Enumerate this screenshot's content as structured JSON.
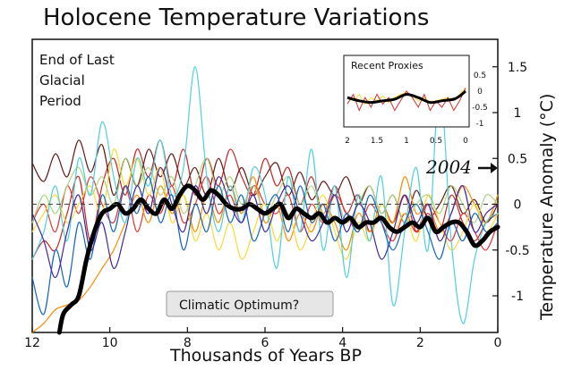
{
  "chart_data": {
    "type": "line",
    "title": "Holocene Temperature Variations",
    "xlabel": "Thousands of Years BP",
    "ylabel": "Temperature Anomaly (°C)",
    "xlim": [
      12,
      0
    ],
    "ylim": [
      -1.4,
      1.8
    ],
    "x_ticks": [
      12,
      10,
      8,
      6,
      4,
      2,
      0
    ],
    "y_ticks": [
      1.5,
      1,
      0.5,
      0,
      -0.5,
      -1
    ],
    "grid": false,
    "zero_line": "dashed",
    "annotations": {
      "glacial": [
        "End of Last",
        "Glacial",
        "Period"
      ],
      "optimum": "Climatic Optimum?",
      "marker_2004": "2004",
      "marker_2004_value": 0.39
    },
    "series": [
      {
        "color": "#c62828",
        "x": [
          12,
          11.7,
          11.4,
          11.1,
          10.8,
          10.5,
          10.2,
          9.9,
          9.6,
          9.3,
          9,
          8.7,
          8.4,
          8.1,
          7.8,
          7.5,
          7.2,
          6.9,
          6.6,
          6.3,
          6,
          5.7,
          5.4,
          5.1,
          4.8,
          4.5,
          4.2,
          3.9,
          3.6,
          3.3,
          3,
          2.7,
          2.4,
          2.1,
          1.8,
          1.5,
          1.2,
          0.9,
          0.6,
          0.3,
          0
        ],
        "values": [
          -0.6,
          -0.4,
          -0.5,
          -0.1,
          0.3,
          -0.4,
          0.2,
          0.5,
          0.1,
          0.6,
          0.3,
          0.7,
          0.2,
          0.6,
          0.1,
          0.5,
          0.2,
          0.6,
          0.3,
          0.1,
          0.5,
          0.2,
          0.4,
          0,
          0.3,
          -0.1,
          0.2,
          -0.1,
          0.1,
          -0.3,
          0,
          -0.2,
          0.1,
          -0.3,
          -0.1,
          -0.3,
          0.1,
          -0.2,
          -0.4,
          -0.2,
          -0.1
        ]
      },
      {
        "color": "#6a1b1b",
        "x": [
          12,
          11.7,
          11.4,
          11.1,
          10.8,
          10.5,
          10.2,
          9.9,
          9.6,
          9.3,
          9,
          8.7,
          8.4,
          8.1,
          7.8,
          7.5,
          7.2,
          6.9,
          6.6,
          6.3,
          6,
          5.7,
          5.4,
          5.1,
          4.8,
          4.5,
          4.2,
          3.9,
          3.6,
          3.3,
          3,
          2.7,
          2.4,
          2.1,
          1.8,
          1.5,
          1.2,
          0.9,
          0.6,
          0.3,
          0
        ],
        "values": [
          0.45,
          0.25,
          0.55,
          0.3,
          0.7,
          0.35,
          0.65,
          0.1,
          0.5,
          0.2,
          0.6,
          0.3,
          0.55,
          0.2,
          0.4,
          0.1,
          0.5,
          0.15,
          0.4,
          0.1,
          0.3,
          0.45,
          0.1,
          0.35,
          0.05,
          0.25,
          0.1,
          0.3,
          0,
          0.2,
          -0.1,
          0.1,
          -0.2,
          0.15,
          -0.15,
          0,
          0.2,
          -0.1,
          0.05,
          -0.2,
          0
        ]
      },
      {
        "color": "#e53935",
        "x": [
          12,
          11.7,
          11.4,
          11.1,
          10.8,
          10.5,
          10.2,
          9.9,
          9.6,
          9.3,
          9,
          8.7,
          8.4,
          8.1,
          7.8,
          7.5,
          7.2,
          6.9,
          6.6,
          6.3,
          6,
          5.7,
          5.4,
          5.1,
          4.8,
          4.5,
          4.2,
          3.9,
          3.6,
          3.3,
          3,
          2.7,
          2.4,
          2.1,
          1.8,
          1.5,
          1.2,
          0.9,
          0.6,
          0.3,
          0
        ],
        "values": [
          -0.2,
          0,
          -0.3,
          0.2,
          -0.1,
          0.3,
          0,
          -0.2,
          0.2,
          -0.3,
          0.1,
          -0.1,
          0.2,
          -0.2,
          0,
          0.3,
          -0.1,
          0.1,
          -0.2,
          0.2,
          0,
          -0.1,
          0.1,
          -0.3,
          0,
          -0.2,
          0.1,
          -0.1,
          -0.3,
          0,
          -0.2,
          -0.4,
          -0.1,
          -0.3,
          0,
          -0.2,
          -0.4,
          -0.1,
          -0.3,
          -0.5,
          -0.2
        ]
      },
      {
        "color": "#fb8c00",
        "x": [
          12,
          11.7,
          11.4,
          11.1,
          10.8,
          10.5,
          10.2,
          9.9,
          9.6,
          9.3,
          9,
          8.7,
          8.4,
          8.1,
          7.8,
          7.5,
          7.2,
          6.9,
          6.6,
          6.3,
          6,
          5.7,
          5.4,
          5.1,
          4.8,
          4.5,
          4.2,
          3.9,
          3.6,
          3.3,
          3,
          2.7,
          2.4,
          2.1,
          1.8,
          1.5,
          1.2,
          0.9,
          0.6,
          0.3,
          0
        ],
        "values": [
          -1.4,
          -1.3,
          -1.15,
          -1.1,
          -1.05,
          -0.9,
          -0.7,
          -0.5,
          -0.2,
          0.1,
          -0.2,
          0.2,
          -0.1,
          0.1,
          -0.3,
          0.1,
          -0.2,
          0.2,
          -0.1,
          0.3,
          -0.2,
          0,
          -0.4,
          -0.1,
          -0.3,
          0,
          -0.2,
          -0.5,
          -0.1,
          -0.3,
          0,
          -0.2,
          0.3,
          -0.1,
          0,
          -0.3,
          -0.1,
          0.2,
          0,
          -0.2,
          0.1
        ]
      },
      {
        "color": "#fdd835",
        "x": [
          12,
          11.7,
          11.4,
          11.1,
          10.8,
          10.5,
          10.2,
          9.9,
          9.6,
          9.3,
          9,
          8.7,
          8.4,
          8.1,
          7.8,
          7.5,
          7.2,
          6.9,
          6.6,
          6.3,
          6,
          5.7,
          5.4,
          5.1,
          4.8,
          4.5,
          4.2,
          3.9,
          3.6,
          3.3,
          3,
          2.7,
          2.4,
          2.1,
          1.8,
          1.5,
          1.2,
          0.9,
          0.6,
          0.3,
          0
        ],
        "values": [
          -0.3,
          -0.1,
          0.1,
          -0.2,
          0,
          0.2,
          -0.1,
          0.6,
          0.2,
          0.5,
          0.1,
          0.4,
          -0.2,
          0.1,
          -0.4,
          -0.1,
          -0.5,
          -0.2,
          -0.6,
          -0.3,
          0,
          -0.4,
          -0.1,
          -0.5,
          -0.2,
          0.1,
          -0.3,
          -0.6,
          -0.2,
          -0.4,
          0,
          -0.3,
          -0.1,
          -0.4,
          0.1,
          -0.2,
          -0.5,
          -0.3,
          0,
          -0.3,
          -0.1
        ]
      },
      {
        "color": "#aed581",
        "x": [
          12,
          11.7,
          11.4,
          11.1,
          10.8,
          10.5,
          10.2,
          9.9,
          9.6,
          9.3,
          9,
          8.7,
          8.4,
          8.1,
          7.8,
          7.5,
          7.2,
          6.9,
          6.6,
          6.3,
          6,
          5.7,
          5.4,
          5.1,
          4.8,
          4.5,
          4.2,
          3.9,
          3.6,
          3.3,
          3,
          2.7,
          2.4,
          2.1,
          1.8,
          1.5,
          1.2,
          0.9,
          0.6,
          0.3,
          0
        ],
        "values": [
          -0.2,
          0.1,
          -0.1,
          0.2,
          0.4,
          0.1,
          0.3,
          0,
          0.5,
          0.2,
          0.4,
          0.1,
          0.3,
          -0.1,
          0.2,
          0.5,
          0.1,
          0.3,
          0,
          0.2,
          -0.1,
          0.1,
          0.3,
          0,
          0.2,
          -0.1,
          0.1,
          -0.2,
          0,
          0.2,
          -0.1,
          0.1,
          -0.2,
          0,
          0.1,
          -0.1,
          0.2,
          0,
          -0.2,
          0.1,
          0
        ]
      },
      {
        "color": "#4dd0e1",
        "x": [
          12,
          11.7,
          11.4,
          11.1,
          10.8,
          10.5,
          10.2,
          9.9,
          9.6,
          9.3,
          9,
          8.7,
          8.4,
          8.1,
          7.8,
          7.5,
          7.2,
          6.9,
          6.6,
          6.3,
          6,
          5.7,
          5.4,
          5.1,
          4.8,
          4.5,
          4.2,
          3.9,
          3.6,
          3.3,
          3,
          2.7,
          2.4,
          2.1,
          1.8,
          1.5,
          1.2,
          0.9,
          0.6,
          0.3,
          0
        ],
        "values": [
          -0.6,
          -0.3,
          0.2,
          -0.4,
          0.5,
          0.1,
          0.9,
          0.3,
          -0.2,
          0.5,
          0.2,
          0.7,
          0.1,
          0.4,
          1.5,
          0.3,
          -0.3,
          0.2,
          -0.2,
          0.4,
          0.1,
          -0.7,
          0.3,
          -0.3,
          0.6,
          -0.5,
          0.2,
          -0.8,
          0.1,
          -0.4,
          0.3,
          -1.1,
          -0.3,
          0.4,
          -0.5,
          1.3,
          -0.4,
          -1.3,
          -0.6,
          -0.2,
          -0.1
        ]
      },
      {
        "color": "#1565c0",
        "x": [
          12,
          11.7,
          11.4,
          11.1,
          10.8,
          10.5,
          10.2,
          9.9,
          9.6,
          9.3,
          9,
          8.7,
          8.4,
          8.1,
          7.8,
          7.5,
          7.2,
          6.9,
          6.6,
          6.3,
          6,
          5.7,
          5.4,
          5.1,
          4.8,
          4.5,
          4.2,
          3.9,
          3.6,
          3.3,
          3,
          2.7,
          2.4,
          2.1,
          1.8,
          1.5,
          1.2,
          0.9,
          0.6,
          0.3,
          0
        ],
        "values": [
          -0.8,
          -1.2,
          -0.5,
          -0.9,
          -0.2,
          -0.6,
          0.1,
          -0.3,
          0.2,
          -0.1,
          0.3,
          -0.2,
          0.1,
          -0.5,
          0,
          -0.3,
          0.2,
          -0.2,
          0.1,
          -0.4,
          -0.1,
          0.1,
          -0.3,
          0.2,
          -0.2,
          0,
          -0.4,
          -0.1,
          -0.3,
          0.1,
          -0.2,
          -0.5,
          -0.2,
          0,
          -0.3,
          -0.6,
          -0.2,
          -0.4,
          -0.1,
          -0.3,
          -0.2
        ]
      },
      {
        "color": "#4527a0",
        "x": [
          12,
          11.7,
          11.4,
          11.1,
          10.8,
          10.5,
          10.2,
          9.9,
          9.6,
          9.3,
          9,
          8.7,
          8.4,
          8.1,
          7.8,
          7.5,
          7.2,
          6.9,
          6.6,
          6.3,
          6,
          5.7,
          5.4,
          5.1,
          4.8,
          4.5,
          4.2,
          3.9,
          3.6,
          3.3,
          3,
          2.7,
          2.4,
          2.1,
          1.8,
          1.5,
          1.2,
          0.9,
          0.6,
          0.3,
          0
        ],
        "values": [
          -0.1,
          -0.4,
          -0.8,
          -0.3,
          0.1,
          -0.5,
          -0.2,
          -0.7,
          -0.3,
          0.2,
          -0.1,
          0.4,
          0,
          -0.3,
          0.2,
          -0.1,
          0.3,
          0,
          -0.2,
          0.1,
          -0.3,
          0,
          0.2,
          -0.1,
          -0.4,
          -0.2,
          0.1,
          -0.3,
          0,
          -0.2,
          -0.6,
          -0.3,
          0.1,
          -0.2,
          0,
          -0.4,
          -0.1,
          0.2,
          -0.3,
          -0.1,
          0
        ]
      },
      {
        "color": "#000000",
        "name": "",
        "x": [
          11.3,
          11.2,
          11,
          10.8,
          10.6,
          10.4,
          10.2,
          10,
          9.8,
          9.6,
          9.4,
          9.2,
          9,
          8.8,
          8.6,
          8.4,
          8.2,
          8,
          7.8,
          7.6,
          7.4,
          7.2,
          7,
          6.8,
          6.6,
          6.4,
          6.2,
          6,
          5.8,
          5.6,
          5.4,
          5.2,
          5,
          4.8,
          4.6,
          4.4,
          4.2,
          4,
          3.8,
          3.6,
          3.4,
          3.2,
          3,
          2.8,
          2.6,
          2.4,
          2.2,
          2,
          1.8,
          1.6,
          1.4,
          1.2,
          1,
          0.8,
          0.6,
          0.4,
          0.2,
          0
        ],
        "values": [
          -1.4,
          -1.2,
          -1.1,
          -1.0,
          -0.6,
          -0.3,
          -0.1,
          -0.05,
          0,
          -0.1,
          -0.05,
          0.05,
          -0.05,
          -0.1,
          0.05,
          -0.05,
          0.1,
          0.2,
          0.15,
          0.05,
          0.15,
          0.1,
          0,
          -0.05,
          -0.05,
          0,
          -0.05,
          -0.1,
          -0.05,
          0,
          -0.15,
          -0.05,
          -0.1,
          -0.15,
          -0.1,
          -0.2,
          -0.15,
          -0.2,
          -0.15,
          -0.25,
          -0.2,
          -0.2,
          -0.15,
          -0.25,
          -0.3,
          -0.25,
          -0.2,
          -0.25,
          -0.15,
          -0.3,
          -0.25,
          -0.2,
          -0.2,
          -0.3,
          -0.45,
          -0.4,
          -0.3,
          -0.25
        ]
      }
    ],
    "inset": {
      "title": "Recent Proxies",
      "xlim": [
        2,
        0
      ],
      "ylim": [
        -1,
        0.5
      ],
      "x_ticks": [
        2,
        1.5,
        1,
        0.5,
        0
      ],
      "y_ticks": [
        0.5,
        0,
        -0.5,
        -1
      ],
      "series": [
        {
          "color": "#fdd835",
          "x": [
            2,
            1.9,
            1.8,
            1.7,
            1.6,
            1.5,
            1.4,
            1.3,
            1.2,
            1.1,
            1,
            0.9,
            0.8,
            0.7,
            0.6,
            0.5,
            0.4,
            0.3,
            0.2,
            0.1,
            0
          ],
          "values": [
            -0.2,
            -0.3,
            -0.1,
            -0.4,
            -0.2,
            -0.3,
            -0.15,
            -0.35,
            -0.2,
            -0.1,
            -0.05,
            -0.15,
            -0.3,
            -0.2,
            -0.35,
            -0.3,
            -0.25,
            -0.2,
            -0.3,
            -0.1,
            0.1
          ]
        },
        {
          "color": "#d32f2f",
          "x": [
            2,
            1.9,
            1.8,
            1.7,
            1.6,
            1.5,
            1.4,
            1.3,
            1.2,
            1.1,
            1,
            0.9,
            0.8,
            0.7,
            0.6,
            0.5,
            0.4,
            0.3,
            0.2,
            0.1,
            0
          ],
          "values": [
            -0.4,
            -0.1,
            -0.6,
            -0.2,
            -0.5,
            -0.1,
            -0.4,
            -0.2,
            -0.6,
            -0.3,
            0,
            -0.2,
            -0.5,
            -0.1,
            -0.6,
            -0.3,
            -0.5,
            -0.2,
            -0.6,
            -0.3,
            0.1
          ]
        },
        {
          "color": "#000000",
          "x": [
            2,
            1.8,
            1.6,
            1.4,
            1.2,
            1,
            0.8,
            0.6,
            0.4,
            0.2,
            0.1,
            0
          ],
          "values": [
            -0.2,
            -0.3,
            -0.35,
            -0.3,
            -0.25,
            -0.1,
            -0.2,
            -0.35,
            -0.3,
            -0.25,
            -0.15,
            0.0
          ]
        }
      ]
    }
  }
}
